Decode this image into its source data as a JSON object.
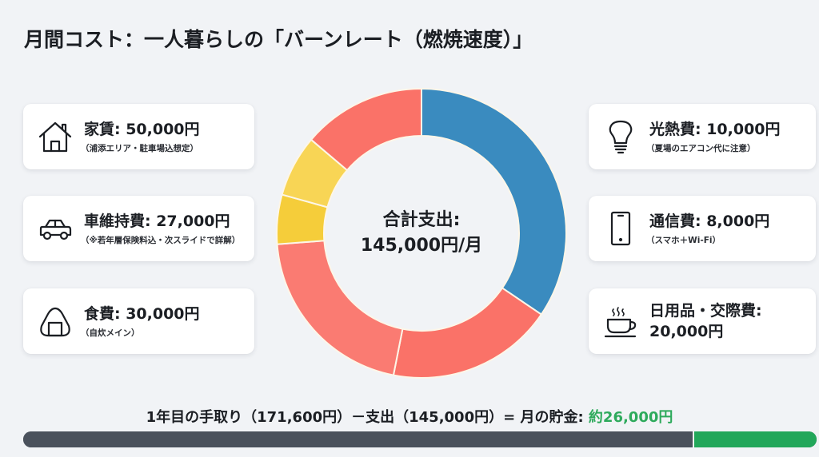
{
  "title": "月間コスト：一人暮らしの「バーンレート（燃焼速度）」",
  "cards": {
    "rent": {
      "label": "家賃: 50,000円",
      "sub": "（浦添エリア・駐車場込想定）",
      "icon": "house-icon"
    },
    "car": {
      "label": "車維持費: 27,000円",
      "sub": "（※若年層保険料込・次スライドで詳解）",
      "icon": "car-icon"
    },
    "food": {
      "label": "食費: 30,000円",
      "sub": "（自炊メイン）",
      "icon": "onigiri-icon"
    },
    "utilities": {
      "label": "光熱費: 10,000円",
      "sub": "（夏場のエアコン代に注意）",
      "icon": "lightbulb-icon"
    },
    "telecom": {
      "label": "通信費: 8,000円",
      "sub": "（スマホ＋Wi-Fi）",
      "icon": "smartphone-icon"
    },
    "daily": {
      "label_line1": "日用品・交際費:",
      "label_line2": "20,000円",
      "icon": "coffee-cup-icon"
    }
  },
  "center": {
    "line1": "合計支出:",
    "line2": "145,000円/月"
  },
  "formula": {
    "text": "1年目の手取り（171,600円）－支出（145,000円）= 月の貯金: ",
    "saving": "約26,000円"
  },
  "colors": {
    "background": "#f1f3f6",
    "rent": "#3a8bbf",
    "car": "#fa7268",
    "food": "#fa7b72",
    "utilities": "#f5cd3a",
    "telecom": "#f8d555",
    "daily": "#fa7268",
    "expense_bar": "#4a515c",
    "saving_bar": "#22a75a",
    "saving_text": "#2eaa5c"
  },
  "chart_data": {
    "type": "pie",
    "subtype": "donut",
    "title": "月間コスト：一人暮らしの「バーンレート（燃焼速度）」",
    "categories": [
      "家賃",
      "車維持費",
      "食費",
      "日用品・交際費",
      "通信費",
      "光熱費"
    ],
    "values": [
      50000,
      27000,
      30000,
      20000,
      8000,
      10000
    ],
    "colors": [
      "#3a8bbf",
      "#fa7268",
      "#fa7b72",
      "#fa7268",
      "#f5cd3a",
      "#f8d555"
    ],
    "center_label": "合計支出: 145,000円/月",
    "total": 145000,
    "unit": "円",
    "start_angle": "12 o'clock, clockwise: 家賃, 車維持費, 食費, 通信費(yellow), 光熱費(yellow), 日用品・交際費",
    "annotations": [
      "家賃: 50,000円（浦添エリア・駐車場込想定）",
      "車維持費: 27,000円（※若年層保険料込・次スライドで詳解）",
      "食費: 30,000円（自炊メイン）",
      "光熱費: 10,000円（夏場のエアコン代に注意）",
      "通信費: 8,000円（スマホ＋Wi-Fi）",
      "日用品・交際費: 20,000円"
    ],
    "secondary": {
      "type": "stacked_bar",
      "categories": [
        "支出",
        "貯金"
      ],
      "values": [
        145000,
        26600
      ],
      "total_income": 171600,
      "label": "1年目の手取り（171,600円）－支出（145,000円）= 月の貯金: 約26,000円"
    }
  }
}
